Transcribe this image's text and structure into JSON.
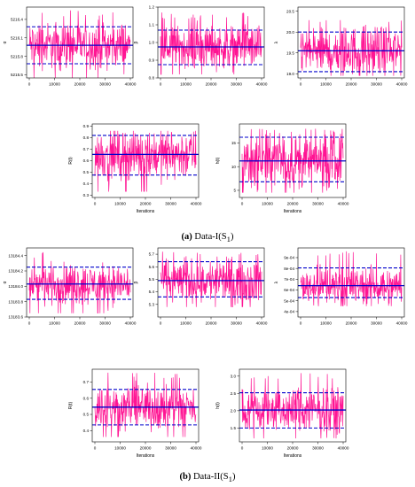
{
  "colors": {
    "trace": "#ff1493",
    "mean": "#0000cc",
    "hpd": "#0000cc"
  },
  "captions": {
    "a_label": "(a)",
    "a_text": "Data-I(S",
    "a_sub": "1",
    "a_end": ")",
    "b_label": "(b)",
    "b_text": "Data-II(S",
    "b_sub": "1",
    "b_end": ")"
  },
  "chart_data": [
    {
      "type": "line",
      "group": "a",
      "xlabel": "",
      "ylabel": "α",
      "xlim": [
        0,
        40000
      ],
      "ylim": [
        5215.45,
        5216.6
      ],
      "xticks": [
        0,
        10000,
        20000,
        30000,
        40000
      ],
      "yticks": [
        5215.5,
        5215.8,
        5216.1,
        5216.4
      ],
      "ytick_labels": [
        "5215.5",
        "5215.8",
        "5216.1",
        "5216.4"
      ],
      "mean": 5215.98,
      "hpd": [
        5215.68,
        5216.28
      ],
      "spread": [
        5215.45,
        5216.55
      ]
    },
    {
      "type": "line",
      "group": "a",
      "xlabel": "",
      "ylabel": "β",
      "xlim": [
        0,
        40000
      ],
      "ylim": [
        0.8,
        1.2
      ],
      "xticks": [
        0,
        10000,
        20000,
        30000,
        40000
      ],
      "yticks": [
        0.8,
        0.9,
        1.0,
        1.1,
        1.2
      ],
      "ytick_labels": [
        "0.8",
        "0.9",
        "1.0",
        "1.1",
        "1.2"
      ],
      "mean": 0.975,
      "hpd": [
        0.875,
        1.07
      ],
      "spread": [
        0.82,
        1.17
      ]
    },
    {
      "type": "line",
      "group": "a",
      "xlabel": "",
      "ylabel": "λ",
      "xlim": [
        0,
        40000
      ],
      "ylim": [
        18.9,
        20.6
      ],
      "xticks": [
        0,
        10000,
        20000,
        30000,
        40000
      ],
      "yticks": [
        19.0,
        19.5,
        20.0,
        20.5
      ],
      "ytick_labels": [
        "19.0",
        "19.5",
        "20.0",
        "20.5"
      ],
      "mean": 19.55,
      "hpd": [
        19.05,
        20.0
      ],
      "spread": [
        18.95,
        20.3
      ]
    },
    {
      "type": "line",
      "group": "a",
      "xlabel": "Iterations",
      "ylabel": "R(t)",
      "xlim": [
        0,
        40000
      ],
      "ylim": [
        0.28,
        0.92
      ],
      "xticks": [
        0,
        10000,
        20000,
        30000,
        40000
      ],
      "yticks": [
        0.3,
        0.4,
        0.5,
        0.6,
        0.7,
        0.8,
        0.9
      ],
      "ytick_labels": [
        "0.3",
        "0.4",
        "0.5",
        "0.6",
        "0.7",
        "0.8",
        "0.9"
      ],
      "mean": 0.655,
      "hpd": [
        0.475,
        0.82
      ],
      "spread": [
        0.33,
        0.86
      ]
    },
    {
      "type": "line",
      "group": "a",
      "xlabel": "Iterations",
      "ylabel": "h(t)",
      "xlim": [
        0,
        40000
      ],
      "ylim": [
        3.5,
        19.0
      ],
      "xticks": [
        0,
        10000,
        20000,
        30000,
        40000
      ],
      "yticks": [
        5,
        10,
        15
      ],
      "ytick_labels": [
        "5",
        "10",
        "15"
      ],
      "mean": 11.2,
      "hpd": [
        6.8,
        16.2
      ],
      "spread": [
        4.5,
        18.0
      ]
    },
    {
      "type": "line",
      "group": "b",
      "xlabel": "",
      "ylabel": "α",
      "xlim": [
        0,
        40000
      ],
      "ylim": [
        13183.6,
        13184.5
      ],
      "xticks": [
        0,
        10000,
        20000,
        30000,
        40000
      ],
      "yticks": [
        13183.6,
        13183.8,
        13184.0,
        13184.2,
        13184.4
      ],
      "ytick_labels": [
        "13183.6",
        "13183.8",
        "13184.0",
        "13184.2",
        "13184.4"
      ],
      "mean": 13184.03,
      "hpd": [
        13183.83,
        13184.25
      ],
      "spread": [
        13183.65,
        13184.45
      ]
    },
    {
      "type": "line",
      "group": "b",
      "xlabel": "",
      "ylabel": "β",
      "xlim": [
        0,
        40000
      ],
      "ylim": [
        5.2,
        5.75
      ],
      "xticks": [
        0,
        10000,
        20000,
        30000,
        40000
      ],
      "yticks": [
        5.3,
        5.4,
        5.5,
        5.6,
        5.7
      ],
      "ytick_labels": [
        "5.3",
        "5.4",
        "5.5",
        "5.6",
        "5.7"
      ],
      "mean": 5.49,
      "hpd": [
        5.36,
        5.64
      ],
      "spread": [
        5.28,
        5.72
      ]
    },
    {
      "type": "line",
      "group": "b",
      "xlabel": "",
      "ylabel": "λ",
      "xlim": [
        0,
        40000
      ],
      "ylim": [
        0.00035,
        0.00099
      ],
      "xticks": [
        0,
        10000,
        20000,
        30000,
        40000
      ],
      "yticks": [
        0.0004,
        0.0005,
        0.0006,
        0.0007,
        0.0008,
        0.0009
      ],
      "ytick_labels": [
        "4e-04",
        "5e-04",
        "6e-04",
        "7e-04",
        "8e-04",
        "9e-04"
      ],
      "mean": 0.00064,
      "hpd": [
        0.00053,
        0.000805
      ],
      "spread": [
        0.00045,
        0.00097
      ]
    },
    {
      "type": "line",
      "group": "b",
      "xlabel": "Iterations",
      "ylabel": "R(t)",
      "xlim": [
        0,
        40000
      ],
      "ylim": [
        0.33,
        0.78
      ],
      "xticks": [
        0,
        10000,
        20000,
        30000,
        40000
      ],
      "yticks": [
        0.4,
        0.5,
        0.6,
        0.7
      ],
      "ytick_labels": [
        "0.4",
        "0.5",
        "0.6",
        "0.7"
      ],
      "mean": 0.545,
      "hpd": [
        0.435,
        0.655
      ],
      "spread": [
        0.36,
        0.76
      ]
    },
    {
      "type": "line",
      "group": "b",
      "xlabel": "Iterations",
      "ylabel": "h(t)",
      "xlim": [
        0,
        40000
      ],
      "ylim": [
        1.1,
        3.2
      ],
      "xticks": [
        0,
        10000,
        20000,
        30000,
        40000
      ],
      "yticks": [
        1.5,
        2.0,
        2.5,
        3.0
      ],
      "ytick_labels": [
        "1.5",
        "2.0",
        "2.5",
        "3.0"
      ],
      "mean": 2.02,
      "hpd": [
        1.5,
        2.52
      ],
      "spread": [
        1.2,
        3.1
      ]
    }
  ]
}
